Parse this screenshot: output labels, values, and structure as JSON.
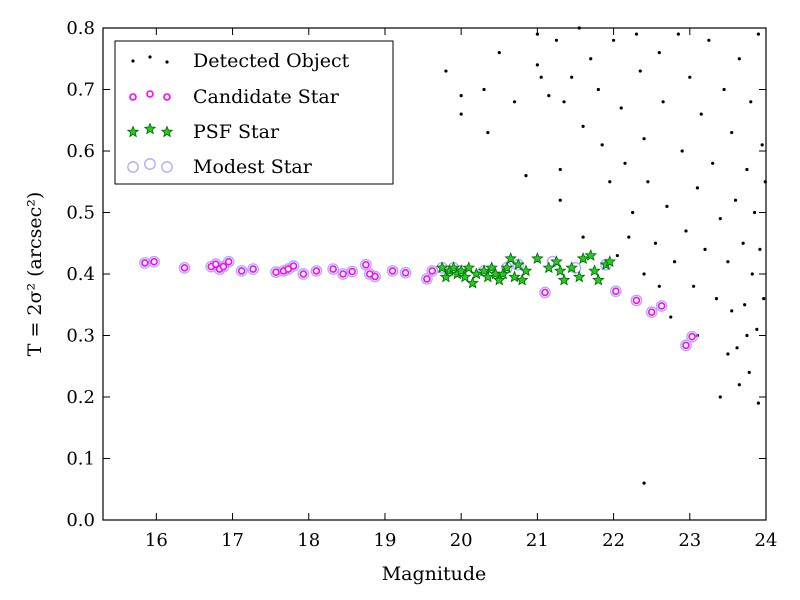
{
  "chart_data": {
    "type": "scatter",
    "xlabel": "Magnitude",
    "ylabel": "T = 2σ² (arcsec²)",
    "xlim": [
      15.3,
      24
    ],
    "ylim": [
      0.0,
      0.8
    ],
    "xticks": [
      "16",
      "17",
      "18",
      "19",
      "20",
      "21",
      "22",
      "23",
      "24"
    ],
    "yticks": [
      "0.0",
      "0.1",
      "0.2",
      "0.3",
      "0.4",
      "0.5",
      "0.6",
      "0.7",
      "0.8"
    ],
    "grid": false,
    "legend_position": "top-left",
    "legend": [
      "Detected Object",
      "Candidate Star",
      "PSF Star",
      "Modest Star"
    ],
    "colors": {
      "detected": "#000000",
      "candidate": "#ff00ff",
      "psf_fill": "#22cc22",
      "psf_edge": "#006600",
      "modest": "#aaaaff"
    },
    "series": [
      {
        "name": "Detected Object",
        "marker": "dot",
        "points": [
          [
            19.8,
            0.73
          ],
          [
            20,
            0.69
          ],
          [
            20,
            0.66
          ],
          [
            20.3,
            0.7
          ],
          [
            20.35,
            0.63
          ],
          [
            20.5,
            0.76
          ],
          [
            20.7,
            0.68
          ],
          [
            20.85,
            0.56
          ],
          [
            21,
            0.79
          ],
          [
            21,
            0.74
          ],
          [
            21.05,
            0.72
          ],
          [
            21.15,
            0.69
          ],
          [
            21.25,
            0.78
          ],
          [
            21.3,
            0.57
          ],
          [
            21.35,
            0.68
          ],
          [
            21.45,
            0.72
          ],
          [
            21.55,
            0.8
          ],
          [
            21.6,
            0.64
          ],
          [
            21.7,
            0.75
          ],
          [
            21.8,
            0.7
          ],
          [
            21.85,
            0.61
          ],
          [
            22,
            0.78
          ],
          [
            22.1,
            0.67
          ],
          [
            22.15,
            0.58
          ],
          [
            22.25,
            0.5
          ],
          [
            22.3,
            0.79
          ],
          [
            22.35,
            0.73
          ],
          [
            22.4,
            0.62
          ],
          [
            22.45,
            0.55
          ],
          [
            22.55,
            0.45
          ],
          [
            22.6,
            0.76
          ],
          [
            22.65,
            0.68
          ],
          [
            22.7,
            0.51
          ],
          [
            22.8,
            0.42
          ],
          [
            22.85,
            0.79
          ],
          [
            22.9,
            0.6
          ],
          [
            22.95,
            0.47
          ],
          [
            23.0,
            0.72
          ],
          [
            23.05,
            0.38
          ],
          [
            23.1,
            0.54
          ],
          [
            23.15,
            0.66
          ],
          [
            23.2,
            0.44
          ],
          [
            23.25,
            0.78
          ],
          [
            23.3,
            0.58
          ],
          [
            23.35,
            0.36
          ],
          [
            23.4,
            0.49
          ],
          [
            23.45,
            0.7
          ],
          [
            23.5,
            0.42
          ],
          [
            23.55,
            0.63
          ],
          [
            23.6,
            0.52
          ],
          [
            23.62,
            0.28
          ],
          [
            23.65,
            0.75
          ],
          [
            23.7,
            0.45
          ],
          [
            23.72,
            0.35
          ],
          [
            23.75,
            0.57
          ],
          [
            23.78,
            0.24
          ],
          [
            23.8,
            0.68
          ],
          [
            23.82,
            0.4
          ],
          [
            23.85,
            0.5
          ],
          [
            23.88,
            0.31
          ],
          [
            23.9,
            0.79
          ],
          [
            23.92,
            0.44
          ],
          [
            23.95,
            0.61
          ],
          [
            23.97,
            0.36
          ],
          [
            23.99,
            0.55
          ],
          [
            22.4,
            0.4
          ],
          [
            22.6,
            0.38
          ],
          [
            22.75,
            0.33
          ],
          [
            23.1,
            0.3
          ],
          [
            23.4,
            0.2
          ],
          [
            23.65,
            0.22
          ],
          [
            23.9,
            0.19
          ],
          [
            22.4,
            0.06
          ],
          [
            21.3,
            0.52
          ],
          [
            21.6,
            0.46
          ],
          [
            21.95,
            0.55
          ],
          [
            22.05,
            0.43
          ],
          [
            22.2,
            0.46
          ],
          [
            23.5,
            0.27
          ],
          [
            23.75,
            0.3
          ],
          [
            23.55,
            0.34
          ]
        ]
      },
      {
        "name": "Candidate Star",
        "marker": "circle",
        "points": [
          [
            15.85,
            0.418
          ],
          [
            15.97,
            0.42
          ],
          [
            16.37,
            0.41
          ],
          [
            16.72,
            0.412
          ],
          [
            16.78,
            0.416
          ],
          [
            16.83,
            0.408
          ],
          [
            16.88,
            0.412
          ],
          [
            16.95,
            0.42
          ],
          [
            17.12,
            0.405
          ],
          [
            17.27,
            0.408
          ],
          [
            17.57,
            0.403
          ],
          [
            17.67,
            0.405
          ],
          [
            17.73,
            0.408
          ],
          [
            17.8,
            0.413
          ],
          [
            17.93,
            0.4
          ],
          [
            18.1,
            0.405
          ],
          [
            18.32,
            0.408
          ],
          [
            18.45,
            0.4
          ],
          [
            18.57,
            0.404
          ],
          [
            18.75,
            0.415
          ],
          [
            18.8,
            0.4
          ],
          [
            18.87,
            0.396
          ],
          [
            19.1,
            0.405
          ],
          [
            19.27,
            0.402
          ],
          [
            19.55,
            0.392
          ],
          [
            19.62,
            0.405
          ],
          [
            21.1,
            0.37
          ],
          [
            22.03,
            0.372
          ],
          [
            22.3,
            0.357
          ],
          [
            22.5,
            0.338
          ],
          [
            22.63,
            0.348
          ],
          [
            22.95,
            0.284
          ],
          [
            23.03,
            0.298
          ]
        ]
      },
      {
        "name": "PSF Star",
        "marker": "star",
        "points": [
          [
            19.75,
            0.41
          ],
          [
            19.8,
            0.395
          ],
          [
            19.85,
            0.405
          ],
          [
            19.9,
            0.41
          ],
          [
            19.95,
            0.4
          ],
          [
            20,
            0.405
          ],
          [
            20.05,
            0.395
          ],
          [
            20.1,
            0.41
          ],
          [
            20.15,
            0.385
          ],
          [
            20.2,
            0.4
          ],
          [
            20.3,
            0.405
          ],
          [
            20.35,
            0.395
          ],
          [
            20.4,
            0.41
          ],
          [
            20.45,
            0.4
          ],
          [
            20.5,
            0.39
          ],
          [
            20.55,
            0.4
          ],
          [
            20.6,
            0.41
          ],
          [
            20.65,
            0.425
          ],
          [
            20.7,
            0.395
          ],
          [
            20.75,
            0.415
          ],
          [
            20.8,
            0.39
          ],
          [
            20.85,
            0.405
          ],
          [
            21.0,
            0.425
          ],
          [
            21.15,
            0.41
          ],
          [
            21.25,
            0.42
          ],
          [
            21.3,
            0.405
          ],
          [
            21.35,
            0.39
          ],
          [
            21.45,
            0.41
          ],
          [
            21.55,
            0.395
          ],
          [
            21.6,
            0.425
          ],
          [
            21.7,
            0.43
          ],
          [
            21.75,
            0.405
          ],
          [
            21.8,
            0.39
          ],
          [
            21.9,
            0.415
          ],
          [
            21.95,
            0.42
          ]
        ]
      },
      {
        "name": "Modest Star",
        "marker": "ring",
        "points": [
          [
            15.85,
            0.418
          ],
          [
            15.97,
            0.42
          ],
          [
            16.37,
            0.41
          ],
          [
            16.72,
            0.412
          ],
          [
            16.78,
            0.416
          ],
          [
            16.83,
            0.408
          ],
          [
            16.88,
            0.412
          ],
          [
            16.95,
            0.42
          ],
          [
            17.12,
            0.405
          ],
          [
            17.27,
            0.408
          ],
          [
            17.57,
            0.403
          ],
          [
            17.67,
            0.405
          ],
          [
            17.73,
            0.408
          ],
          [
            17.8,
            0.413
          ],
          [
            17.93,
            0.4
          ],
          [
            18.1,
            0.405
          ],
          [
            18.32,
            0.408
          ],
          [
            18.45,
            0.4
          ],
          [
            18.57,
            0.404
          ],
          [
            18.75,
            0.415
          ],
          [
            18.8,
            0.4
          ],
          [
            18.87,
            0.396
          ],
          [
            19.1,
            0.405
          ],
          [
            19.27,
            0.402
          ],
          [
            19.55,
            0.392
          ],
          [
            19.62,
            0.405
          ],
          [
            21.1,
            0.37
          ],
          [
            22.03,
            0.372
          ],
          [
            22.3,
            0.357
          ],
          [
            22.5,
            0.338
          ],
          [
            22.63,
            0.348
          ],
          [
            22.95,
            0.284
          ],
          [
            23.03,
            0.298
          ],
          [
            19.75,
            0.41
          ],
          [
            19.9,
            0.41
          ],
          [
            20.0,
            0.405
          ],
          [
            20.3,
            0.405
          ],
          [
            20.6,
            0.41
          ],
          [
            20.75,
            0.415
          ],
          [
            21.2,
            0.42
          ],
          [
            21.5,
            0.41
          ],
          [
            21.9,
            0.415
          ]
        ]
      }
    ]
  }
}
